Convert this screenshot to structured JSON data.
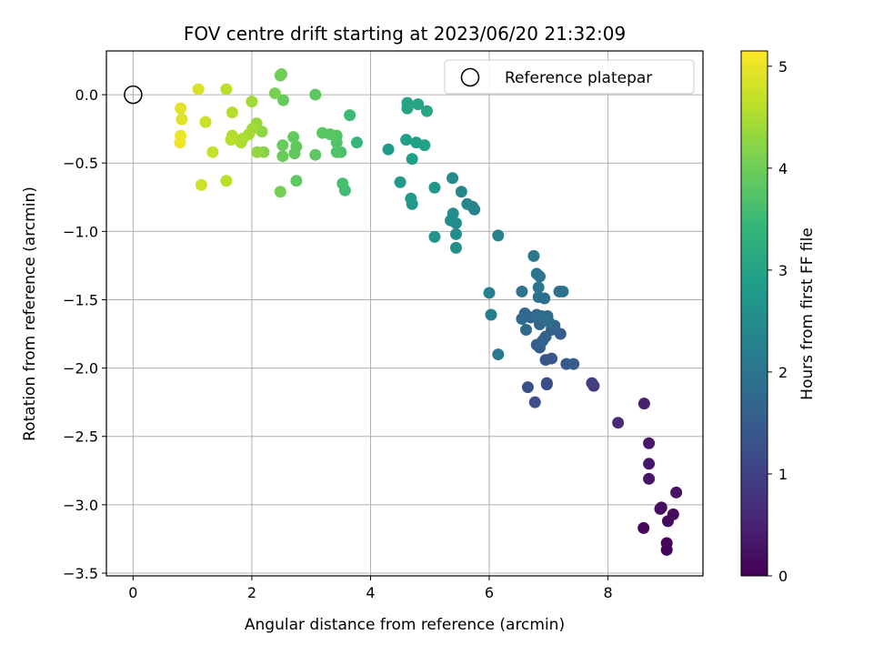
{
  "chart_data": {
    "type": "scatter",
    "title": "FOV centre drift starting at 2023/06/20 21:32:09",
    "xlabel": "Angular distance from reference (arcmin)",
    "ylabel": "Rotation from reference (arcmin)",
    "xlim": [
      -0.45,
      9.6
    ],
    "ylim": [
      -3.52,
      0.32
    ],
    "xticks": [
      0,
      2,
      4,
      6,
      8
    ],
    "xtick_labels": [
      "0",
      "2",
      "4",
      "6",
      "8"
    ],
    "yticks": [
      0.0,
      -0.5,
      -1.0,
      -1.5,
      -2.0,
      -2.5,
      -3.0,
      -3.5
    ],
    "ytick_labels": [
      "0.0",
      "−0.5",
      "−1.0",
      "−1.5",
      "−2.0",
      "−2.5",
      "−3.0",
      "−3.5"
    ],
    "grid": true,
    "legend": {
      "placement": "top-right",
      "entries": [
        {
          "label": "Reference platepar",
          "marker": "open-circle"
        }
      ]
    },
    "reference_point": {
      "x": 0,
      "y": 0
    },
    "colorbar": {
      "label": "Hours from first FF file",
      "colormap": "viridis",
      "range": [
        0,
        5.15
      ],
      "ticks": [
        0,
        1,
        2,
        3,
        4,
        5
      ],
      "tick_labels": [
        "0",
        "1",
        "2",
        "3",
        "4",
        "5"
      ],
      "colormap_stops": [
        "#440154",
        "#482878",
        "#3e4a89",
        "#31688e",
        "#26828e",
        "#1f9e89",
        "#35b779",
        "#6ece58",
        "#b5de2b",
        "#fde725"
      ]
    },
    "points": [
      [
        8.99,
        -3.33,
        0.05
      ],
      [
        8.99,
        -3.28,
        0.08
      ],
      [
        8.6,
        -3.17,
        0.1
      ],
      [
        9.01,
        -3.12,
        0.12
      ],
      [
        9.1,
        -3.07,
        0.15
      ],
      [
        8.88,
        -3.03,
        0.18
      ],
      [
        8.9,
        -3.02,
        0.2
      ],
      [
        9.15,
        -2.91,
        0.25
      ],
      [
        8.69,
        -2.81,
        0.3
      ],
      [
        8.69,
        -2.7,
        0.32
      ],
      [
        8.69,
        -2.55,
        0.35
      ],
      [
        8.61,
        -2.26,
        0.45
      ],
      [
        8.17,
        -2.4,
        0.6
      ],
      [
        7.76,
        -2.13,
        0.9
      ],
      [
        7.73,
        -2.11,
        0.95
      ],
      [
        6.97,
        -2.11,
        1.2
      ],
      [
        6.97,
        -2.12,
        1.22
      ],
      [
        6.77,
        -2.25,
        1.25
      ],
      [
        6.65,
        -2.14,
        1.3
      ],
      [
        6.95,
        -1.94,
        1.4
      ],
      [
        7.05,
        -1.93,
        1.42
      ],
      [
        7.3,
        -1.97,
        1.45
      ],
      [
        7.42,
        -1.97,
        1.48
      ],
      [
        7.2,
        -1.75,
        1.5
      ],
      [
        6.85,
        -1.85,
        1.52
      ],
      [
        6.8,
        -1.83,
        1.55
      ],
      [
        6.9,
        -1.8,
        1.58
      ],
      [
        6.95,
        -1.77,
        1.6
      ],
      [
        7.05,
        -1.72,
        1.62
      ],
      [
        7.1,
        -1.69,
        1.65
      ],
      [
        6.85,
        -1.68,
        1.68
      ],
      [
        6.7,
        -1.63,
        1.7
      ],
      [
        6.6,
        -1.6,
        1.72
      ],
      [
        6.55,
        -1.64,
        1.75
      ],
      [
        6.62,
        -1.72,
        1.78
      ],
      [
        6.8,
        -1.61,
        1.8
      ],
      [
        6.88,
        -1.62,
        1.82
      ],
      [
        6.98,
        -1.62,
        1.85
      ],
      [
        7.0,
        -1.66,
        1.85
      ],
      [
        6.93,
        -1.49,
        1.9
      ],
      [
        6.83,
        -1.48,
        1.92
      ],
      [
        7.18,
        -1.44,
        1.93
      ],
      [
        7.24,
        -1.44,
        1.95
      ],
      [
        6.55,
        -1.44,
        1.95
      ],
      [
        6.83,
        -1.41,
        1.98
      ],
      [
        6.85,
        -1.33,
        2.0
      ],
      [
        6.8,
        -1.31,
        2.02
      ],
      [
        6.75,
        -1.18,
        2.05
      ],
      [
        6.15,
        -1.9,
        2.1
      ],
      [
        6.03,
        -1.61,
        2.2
      ],
      [
        6.0,
        -1.45,
        2.25
      ],
      [
        6.15,
        -1.03,
        2.3
      ],
      [
        5.75,
        -0.84,
        2.35
      ],
      [
        5.72,
        -0.82,
        2.38
      ],
      [
        5.63,
        -0.8,
        2.4
      ],
      [
        5.53,
        -0.71,
        2.42
      ],
      [
        5.38,
        -0.61,
        2.45
      ],
      [
        5.44,
        -0.94,
        2.48
      ],
      [
        5.35,
        -0.92,
        2.5
      ],
      [
        5.39,
        -0.87,
        2.52
      ],
      [
        5.44,
        -1.02,
        2.55
      ],
      [
        5.44,
        -1.12,
        2.6
      ],
      [
        5.08,
        -1.04,
        2.65
      ],
      [
        5.08,
        -0.68,
        2.7
      ],
      [
        4.7,
        -0.8,
        2.75
      ],
      [
        4.68,
        -0.76,
        2.78
      ],
      [
        4.5,
        -0.64,
        2.8
      ],
      [
        4.3,
        -0.4,
        2.85
      ],
      [
        4.7,
        -0.47,
        2.88
      ],
      [
        4.6,
        -0.33,
        2.9
      ],
      [
        4.77,
        -0.35,
        2.92
      ],
      [
        4.91,
        -0.37,
        2.95
      ],
      [
        4.62,
        -0.06,
        2.98
      ],
      [
        4.62,
        -0.1,
        3.0
      ],
      [
        4.8,
        -0.07,
        3.02
      ],
      [
        4.95,
        -0.12,
        3.05
      ],
      [
        3.77,
        -0.35,
        3.4
      ],
      [
        3.65,
        -0.15,
        3.5
      ],
      [
        3.57,
        -0.7,
        3.55
      ],
      [
        3.53,
        -0.65,
        3.6
      ],
      [
        3.5,
        -0.42,
        3.65
      ],
      [
        3.43,
        -0.42,
        3.7
      ],
      [
        3.43,
        -0.35,
        3.72
      ],
      [
        3.43,
        -0.3,
        3.75
      ],
      [
        3.32,
        -0.29,
        3.78
      ],
      [
        3.19,
        -0.28,
        3.8
      ],
      [
        3.07,
        -0.44,
        3.82
      ],
      [
        3.07,
        0.0,
        3.84
      ],
      [
        2.75,
        -0.63,
        3.85
      ],
      [
        2.75,
        -0.38,
        3.86
      ],
      [
        2.72,
        -0.43,
        3.88
      ],
      [
        2.7,
        -0.31,
        3.9
      ],
      [
        2.53,
        -0.04,
        3.92
      ],
      [
        2.52,
        -0.37,
        3.95
      ],
      [
        2.52,
        -0.45,
        3.98
      ],
      [
        2.5,
        0.15,
        4.0
      ],
      [
        2.48,
        0.14,
        4.02
      ],
      [
        2.48,
        -0.71,
        4.05
      ],
      [
        2.39,
        0.01,
        4.08
      ],
      [
        2.2,
        -0.42,
        4.2
      ],
      [
        2.17,
        -0.27,
        4.25
      ],
      [
        2.09,
        -0.42,
        4.3
      ],
      [
        2.08,
        -0.21,
        4.35
      ],
      [
        2.01,
        -0.25,
        4.4
      ],
      [
        2.0,
        -0.05,
        4.42
      ],
      [
        1.95,
        -0.29,
        4.45
      ],
      [
        1.85,
        -0.32,
        4.5
      ],
      [
        1.82,
        -0.35,
        4.52
      ],
      [
        1.67,
        -0.3,
        4.55
      ],
      [
        1.67,
        -0.13,
        4.58
      ],
      [
        1.65,
        -0.33,
        4.6
      ],
      [
        1.57,
        -0.63,
        4.62
      ],
      [
        1.57,
        0.04,
        4.64
      ],
      [
        1.34,
        -0.42,
        4.7
      ],
      [
        1.22,
        -0.2,
        4.75
      ],
      [
        1.15,
        -0.66,
        4.8
      ],
      [
        1.1,
        0.04,
        4.85
      ],
      [
        0.82,
        -0.18,
        4.9
      ],
      [
        0.8,
        -0.1,
        4.95
      ],
      [
        0.8,
        -0.3,
        5.0
      ],
      [
        0.79,
        -0.35,
        5.05
      ]
    ]
  }
}
